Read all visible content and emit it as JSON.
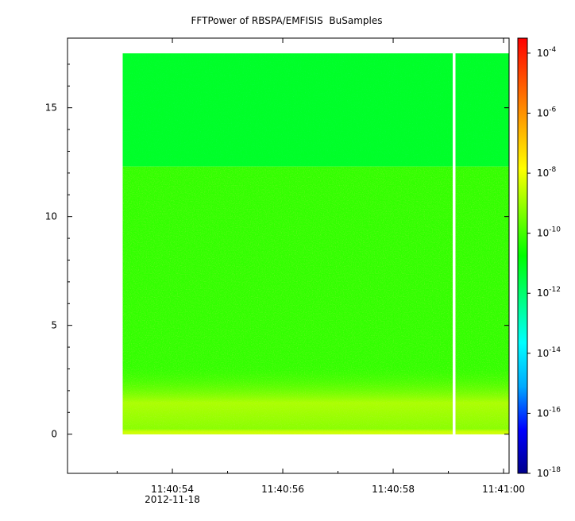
{
  "chart_data": {
    "type": "heatmap",
    "title": "FFTPower of RBSPA/EMFISIS  BuSamples",
    "xlabel": "",
    "ylabel": "",
    "x_range": [
      "11:40:52.1",
      "11:41:00.1"
    ],
    "data_x_range": [
      "11:40:53.1",
      "11:41:00.1"
    ],
    "ylim": [
      -1.8,
      18.2
    ],
    "data_ylim": [
      0,
      17.5
    ],
    "band_edge_y": 12.3,
    "gap_x": "11:40:59.1",
    "x_ticks": [
      {
        "value": "11:40:54",
        "label": "11:40:54",
        "sublabel": "2012-11-18"
      },
      {
        "value": "11:40:56",
        "label": "11:40:56",
        "sublabel": ""
      },
      {
        "value": "11:40:58",
        "label": "11:40:58",
        "sublabel": ""
      },
      {
        "value": "11:41:00",
        "label": "11:41:00",
        "sublabel": ""
      }
    ],
    "y_ticks": [
      0,
      5,
      10,
      15
    ],
    "colorbar": {
      "scale": "log",
      "range": [
        -18,
        -3.5
      ],
      "ticks": [
        {
          "exp": -4,
          "base": "10",
          "power": "-4"
        },
        {
          "exp": -6,
          "base": "10",
          "power": "-6"
        },
        {
          "exp": -8,
          "base": "10",
          "power": "-8"
        },
        {
          "exp": -10,
          "base": "10",
          "power": "-10"
        },
        {
          "exp": -12,
          "base": "10",
          "power": "-12"
        },
        {
          "exp": -14,
          "base": "10",
          "power": "-14"
        },
        {
          "exp": -16,
          "base": "10",
          "power": "-16"
        },
        {
          "exp": -18,
          "base": "10",
          "power": "-18"
        }
      ],
      "colors": [
        "#00008b",
        "#0000ff",
        "#00aaff",
        "#00ffff",
        "#00ff80",
        "#00ff00",
        "#80ff00",
        "#ffff00",
        "#ffaa00",
        "#ff5500",
        "#ff0000"
      ]
    },
    "power_levels": {
      "upper_band": -11.2,
      "middle_band": -10.2,
      "low_band": -9.2,
      "baseline": -7.8
    },
    "grid": false
  }
}
